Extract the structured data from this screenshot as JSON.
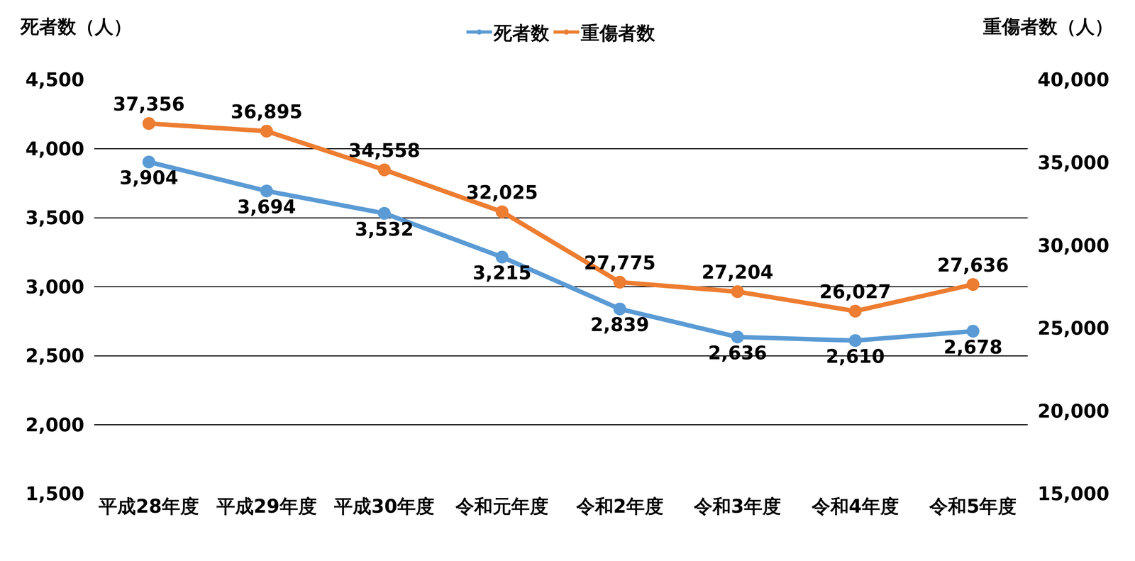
{
  "chart_data": {
    "type": "line",
    "ylabel": "死者数（人）",
    "y2label": "重傷者数（人）",
    "categories": [
      "平成28年度",
      "平成29年度",
      "平成30年度",
      "令和元年度",
      "令和2年度",
      "令和3年度",
      "令和4年度",
      "令和5年度"
    ],
    "series": [
      {
        "name": "死者数",
        "color": "#5b9bd5",
        "axis": "y",
        "values": [
          3904,
          3694,
          3532,
          3215,
          2839,
          2636,
          2610,
          2678
        ],
        "value_labels": [
          "3,904",
          "3,694",
          "3,532",
          "3,215",
          "2,839",
          "2,636",
          "2,610",
          "2,678"
        ]
      },
      {
        "name": "重傷者数",
        "color": "#ed7d31",
        "axis": "y2",
        "values": [
          37356,
          36895,
          34558,
          32025,
          27775,
          27204,
          26027,
          27636
        ],
        "value_labels": [
          "37,356",
          "36,895",
          "34,558",
          "32,025",
          "27,775",
          "27,204",
          "26,027",
          "27,636"
        ]
      }
    ],
    "ylim": [
      1500,
      4500
    ],
    "yticks": [
      {
        "value": 1500,
        "label": "1,500"
      },
      {
        "value": 2000,
        "label": "2,000"
      },
      {
        "value": 2500,
        "label": "2,500"
      },
      {
        "value": 3000,
        "label": "3,000"
      },
      {
        "value": 3500,
        "label": "3,500"
      },
      {
        "value": 4000,
        "label": "4,000"
      },
      {
        "value": 4500,
        "label": "4,500"
      }
    ],
    "y2lim": [
      15000,
      40000
    ],
    "y2ticks": [
      {
        "value": 15000,
        "label": "15,000"
      },
      {
        "value": 20000,
        "label": "20,000"
      },
      {
        "value": 25000,
        "label": "25,000"
      },
      {
        "value": 30000,
        "label": "30,000"
      },
      {
        "value": 35000,
        "label": "35,000"
      },
      {
        "value": 40000,
        "label": "40,000"
      }
    ],
    "grid": true,
    "legend": "top",
    "data_labels": true,
    "marker": "circle",
    "line_style": "solid"
  }
}
